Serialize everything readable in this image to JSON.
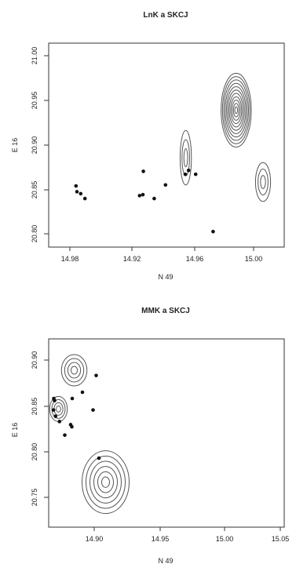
{
  "chart_data": [
    {
      "type": "scatter",
      "subtype": "contour-with-points",
      "title": "LnK a SKCJ",
      "xlabel": "N 49",
      "ylabel": "E 16",
      "xlim": [
        14.965,
        15.015
      ],
      "ylim": [
        20.795,
        21.005
      ],
      "x_ticks": [
        "14.98",
        "14.92",
        "14.96",
        "15.00"
      ],
      "y_ticks": [
        "21.00",
        "20.95",
        "20.90",
        "20.85",
        "20.80"
      ],
      "grid": false,
      "points": [
        {
          "x": 14.9708,
          "y": 20.858
        },
        {
          "x": 14.971,
          "y": 20.852
        },
        {
          "x": 14.9718,
          "y": 20.85
        },
        {
          "x": 14.9727,
          "y": 20.845
        },
        {
          "x": 14.9843,
          "y": 20.848
        },
        {
          "x": 14.985,
          "y": 20.849
        },
        {
          "x": 14.9851,
          "y": 20.873
        },
        {
          "x": 14.9874,
          "y": 20.845
        },
        {
          "x": 14.9898,
          "y": 20.859
        },
        {
          "x": 14.994,
          "y": 20.87
        },
        {
          "x": 14.9947,
          "y": 20.874
        },
        {
          "x": 14.9962,
          "y": 20.87
        },
        {
          "x": 14.9999,
          "y": 20.811
        }
      ],
      "contour_centers": [
        {
          "x": 15.0048,
          "y": 20.936,
          "levels": 11,
          "rx": 0.0032,
          "ry": 0.038
        },
        {
          "x": 14.9941,
          "y": 20.887,
          "levels": 3,
          "rx": 0.0012,
          "ry": 0.028
        },
        {
          "x": 15.0105,
          "y": 20.862,
          "levels": 3,
          "rx": 0.0016,
          "ry": 0.02
        }
      ]
    },
    {
      "type": "scatter",
      "subtype": "contour-with-points",
      "title": "MMK a SKCJ",
      "xlabel": "N 49",
      "ylabel": "E 16",
      "xlim": [
        14.935,
        15.055
      ],
      "ylim": [
        20.735,
        20.915
      ],
      "x_ticks": [
        "14.90",
        "14.95",
        "15.00",
        "15.05"
      ],
      "y_ticks": [
        "20.90",
        "20.85",
        "20.80",
        "20.75"
      ],
      "grid": false,
      "points": [
        {
          "x": 14.9375,
          "y": 20.847
        },
        {
          "x": 14.9376,
          "y": 20.858
        },
        {
          "x": 14.938,
          "y": 20.856
        },
        {
          "x": 14.9385,
          "y": 20.841
        },
        {
          "x": 14.9405,
          "y": 20.836
        },
        {
          "x": 14.9432,
          "y": 20.823
        },
        {
          "x": 14.9462,
          "y": 20.833
        },
        {
          "x": 14.9468,
          "y": 20.831
        },
        {
          "x": 14.947,
          "y": 20.858
        },
        {
          "x": 14.9522,
          "y": 20.864
        },
        {
          "x": 14.9576,
          "y": 20.847
        },
        {
          "x": 14.9592,
          "y": 20.88
        },
        {
          "x": 14.9606,
          "y": 20.801
        }
      ],
      "contour_centers": [
        {
          "x": 14.964,
          "y": 20.778,
          "levels": 6,
          "rx": 0.012,
          "ry": 0.03
        },
        {
          "x": 14.948,
          "y": 20.885,
          "levels": 4,
          "rx": 0.0065,
          "ry": 0.015
        },
        {
          "x": 14.94,
          "y": 20.848,
          "levels": 4,
          "rx": 0.0045,
          "ry": 0.012
        }
      ]
    }
  ]
}
